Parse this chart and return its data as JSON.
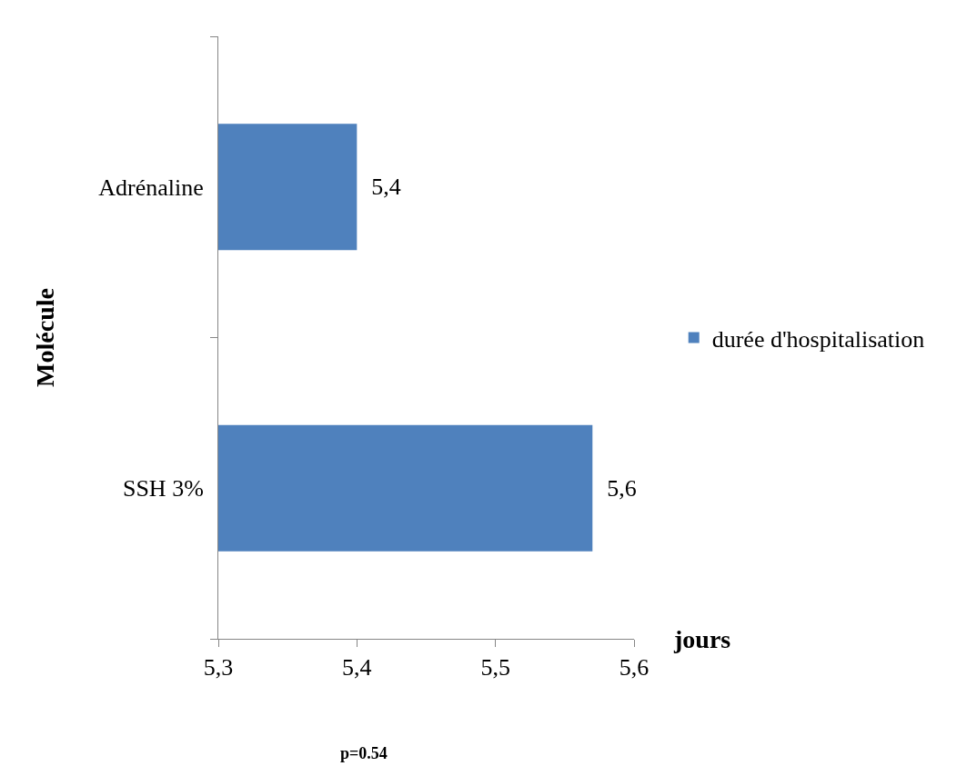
{
  "chart_data": {
    "type": "bar",
    "orientation": "horizontal",
    "xlabel": "jours",
    "ylabel": "Molécule",
    "categories": [
      "Adrénaline",
      "SSH 3%"
    ],
    "series": [
      {
        "name": "durée d'hospitalisation",
        "color": "#4f81bd",
        "values": [
          5.4,
          5.57
        ],
        "value_labels": [
          "5,4",
          "5,6"
        ]
      }
    ],
    "xlim": [
      5.3,
      5.6
    ],
    "xticks": [
      {
        "value": 5.3,
        "label": "5,3"
      },
      {
        "value": 5.4,
        "label": "5,4"
      },
      {
        "value": 5.5,
        "label": "5,5"
      },
      {
        "value": 5.6,
        "label": "5,6"
      }
    ],
    "legend": "right",
    "annotations": [
      "p=0.54"
    ]
  }
}
